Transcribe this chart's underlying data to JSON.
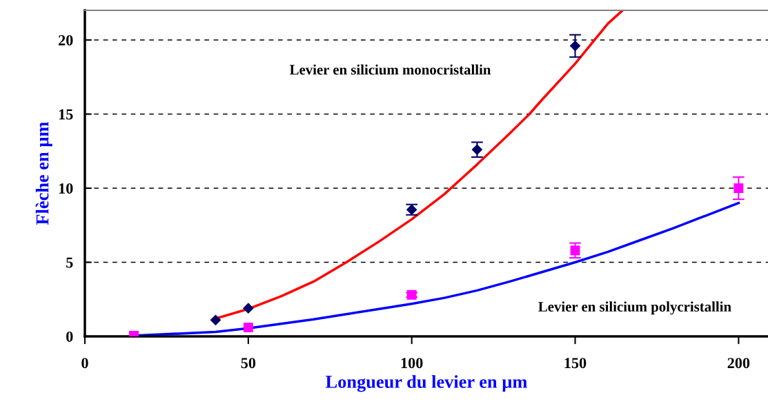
{
  "chart_data": {
    "type": "scatter",
    "xlabel": "Longueur du levier en µm",
    "ylabel": "Flèche en µm",
    "xlim": [
      0,
      209
    ],
    "xticks": [
      0,
      50,
      100,
      150,
      200
    ],
    "ylim": [
      0,
      22
    ],
    "yticks": [
      0,
      5,
      10,
      15,
      20
    ],
    "grid": "y",
    "legend": false,
    "annotations": [
      "Levier en silicium monocristallin",
      "Levier en silicium polycristallin"
    ],
    "series": [
      {
        "type": "line",
        "color": "#ff0000",
        "marker": "none",
        "x": [
          40,
          50,
          60,
          70,
          80,
          90,
          100,
          110,
          120,
          130,
          136,
          140,
          150,
          160,
          164.5
        ],
        "values": [
          1.2,
          1.85,
          2.7,
          3.7,
          5.0,
          6.4,
          7.9,
          9.6,
          11.6,
          13.7,
          15.0,
          16.0,
          18.4,
          21.1,
          22.0
        ]
      },
      {
        "type": "line",
        "color": "#0000ff",
        "marker": "none",
        "x": [
          15,
          20,
          30,
          40,
          50,
          60,
          70,
          80,
          90,
          100,
          110,
          120,
          130,
          140,
          150,
          160,
          170,
          180,
          190,
          200
        ],
        "values": [
          0.05,
          0.1,
          0.2,
          0.3,
          0.55,
          0.85,
          1.15,
          1.5,
          1.85,
          2.2,
          2.6,
          3.1,
          3.7,
          4.35,
          5.0,
          5.7,
          6.5,
          7.3,
          8.15,
          9.0
        ]
      },
      {
        "color": "#000066",
        "marker": "diamond",
        "x": [
          40,
          50,
          100,
          120,
          150
        ],
        "values": [
          1.1,
          1.9,
          8.55,
          12.6,
          19.6
        ],
        "errors": [
          null,
          null,
          0.35,
          0.5,
          0.75
        ]
      },
      {
        "color": "#ff00ff",
        "marker": "square",
        "x": [
          15,
          50,
          100,
          150,
          200
        ],
        "values": [
          0.05,
          0.6,
          2.8,
          5.8,
          10.0
        ],
        "errors": [
          null,
          null,
          0.15,
          0.5,
          0.75
        ]
      }
    ]
  }
}
